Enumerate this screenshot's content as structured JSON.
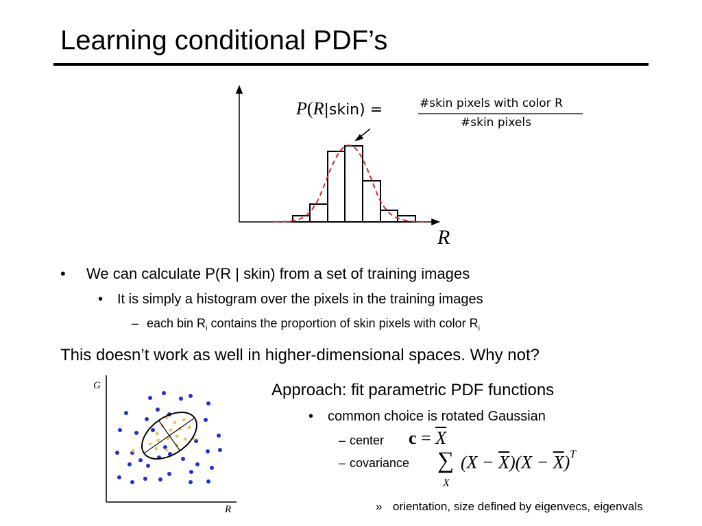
{
  "title": "Learning conditional PDF’s",
  "histogram": {
    "formula_lhs": [
      "P",
      "(",
      "R",
      "|skin) ="
    ],
    "numerator": "#skin pixels with color R",
    "denominator": "#skin pixels",
    "x_label": "R"
  },
  "bullets": [
    {
      "marker": "•",
      "text": "We can calculate P(R | skin) from a set of training images"
    },
    {
      "marker": "•",
      "text": "It is simply a histogram over the pixels in the training images"
    },
    {
      "marker": "–",
      "parts": [
        "each bin R",
        "i",
        " contains the proportion of skin pixels with color R",
        "i"
      ]
    }
  ],
  "statement": "This doesn’t work as well in higher-dimensional spaces.  Why not?",
  "scatter": {
    "y_label": "G",
    "x_label": "R"
  },
  "approach": {
    "heading": "Approach:  fit parametric PDF functions",
    "bullet_marker": "•",
    "bullet": "common choice is rotated Gaussian",
    "sub_marker": "–",
    "center_label": "center",
    "center_formula": [
      "c",
      " = ",
      "X"
    ],
    "covariance_label": "covariance",
    "covariance_formula": [
      "∑",
      "X",
      "(X − ",
      "X",
      ")(X − ",
      "X",
      ")",
      "T"
    ],
    "note_marker": "»",
    "note": "orientation, size defined by eigenvecs, eigenvals"
  }
}
